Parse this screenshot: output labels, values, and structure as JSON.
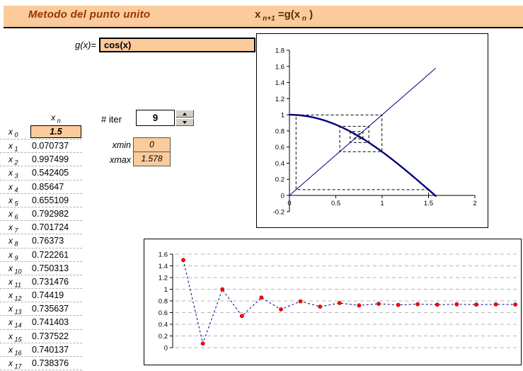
{
  "header": {
    "title": "Metodo del punto unito",
    "formula": {
      "x1": "x",
      "sub1": "n+1",
      "mid": "=g(",
      "x2": "x",
      "sub2": "n",
      "close": ")"
    }
  },
  "gx": {
    "label": "g(x)=",
    "value": "cos(x)"
  },
  "controls": {
    "iter_label": "# iter",
    "iter_value": "9",
    "xmin_label": "xmin",
    "xmin_value": "0",
    "xmax_label": "xmax",
    "xmax_value": "1.578"
  },
  "table": {
    "header_base": "x",
    "header_sub": "n",
    "row_label_base": "x",
    "rows": [
      {
        "sub": "0",
        "value": "1.5"
      },
      {
        "sub": "1",
        "value": "0.070737"
      },
      {
        "sub": "2",
        "value": "0.997499"
      },
      {
        "sub": "3",
        "value": "0.542405"
      },
      {
        "sub": "4",
        "value": "0.85647"
      },
      {
        "sub": "5",
        "value": "0.655109"
      },
      {
        "sub": "6",
        "value": "0.792982"
      },
      {
        "sub": "7",
        "value": "0.701724"
      },
      {
        "sub": "8",
        "value": "0.76373"
      },
      {
        "sub": "9",
        "value": "0.722261"
      },
      {
        "sub": "10",
        "value": "0.750313"
      },
      {
        "sub": "11",
        "value": "0.731476"
      },
      {
        "sub": "12",
        "value": "0.74419"
      },
      {
        "sub": "13",
        "value": "0.735637"
      },
      {
        "sub": "14",
        "value": "0.741403"
      },
      {
        "sub": "15",
        "value": "0.737522"
      },
      {
        "sub": "16",
        "value": "0.740137"
      },
      {
        "sub": "17",
        "value": "0.738376"
      }
    ]
  },
  "colors": {
    "peach": "#FBCB9C",
    "title_brown": "#993300",
    "navy": "#000080",
    "marker_red": "#FF0000",
    "gridline_gray": "#b5b5b5"
  },
  "chart_data": [
    {
      "id": "cobweb",
      "type": "line",
      "title": "",
      "xlabel": "",
      "ylabel": "",
      "xlim": [
        0,
        2
      ],
      "ylim": [
        -0.2,
        1.8
      ],
      "x_ticks": [
        "0",
        "0.5",
        "1",
        "1.5",
        "2"
      ],
      "y_ticks": [
        "-0.2",
        "0",
        "0.2",
        "0.4",
        "0.6",
        "0.8",
        "1",
        "1.2",
        "1.4",
        "1.6",
        "1.8"
      ],
      "grid": false,
      "curves": [
        {
          "name": "g(x)=cos(x)",
          "style": "solid",
          "width": 2.4,
          "color": "#000080",
          "fn": "cos",
          "domain": [
            0,
            1.578
          ]
        },
        {
          "name": "identity y=x",
          "style": "solid",
          "width": 1,
          "color": "#000080",
          "domain": [
            0,
            1.578
          ]
        },
        {
          "name": "cobweb-path",
          "style": "dashed",
          "width": 1,
          "color": "#000000",
          "x0": 1.5,
          "iterations_used": 9
        }
      ]
    },
    {
      "id": "iterations",
      "type": "line",
      "title": "",
      "xlabel": "",
      "ylabel": "",
      "ylim": [
        0,
        1.6
      ],
      "y_ticks": [
        "0",
        "0.2",
        "0.4",
        "0.6",
        "0.8",
        "1",
        "1.2",
        "1.4",
        "1.6"
      ],
      "grid": true,
      "legend": "none",
      "line_color": "#000080",
      "line_style": "dashed",
      "marker": "circle",
      "marker_color": "#FF0000",
      "values": [
        1.5,
        0.070737,
        0.997499,
        0.542405,
        0.85647,
        0.655109,
        0.792982,
        0.701724,
        0.76373,
        0.722261,
        0.750313,
        0.731476,
        0.74419,
        0.735637,
        0.741403,
        0.737522,
        0.740137,
        0.738376
      ]
    }
  ]
}
